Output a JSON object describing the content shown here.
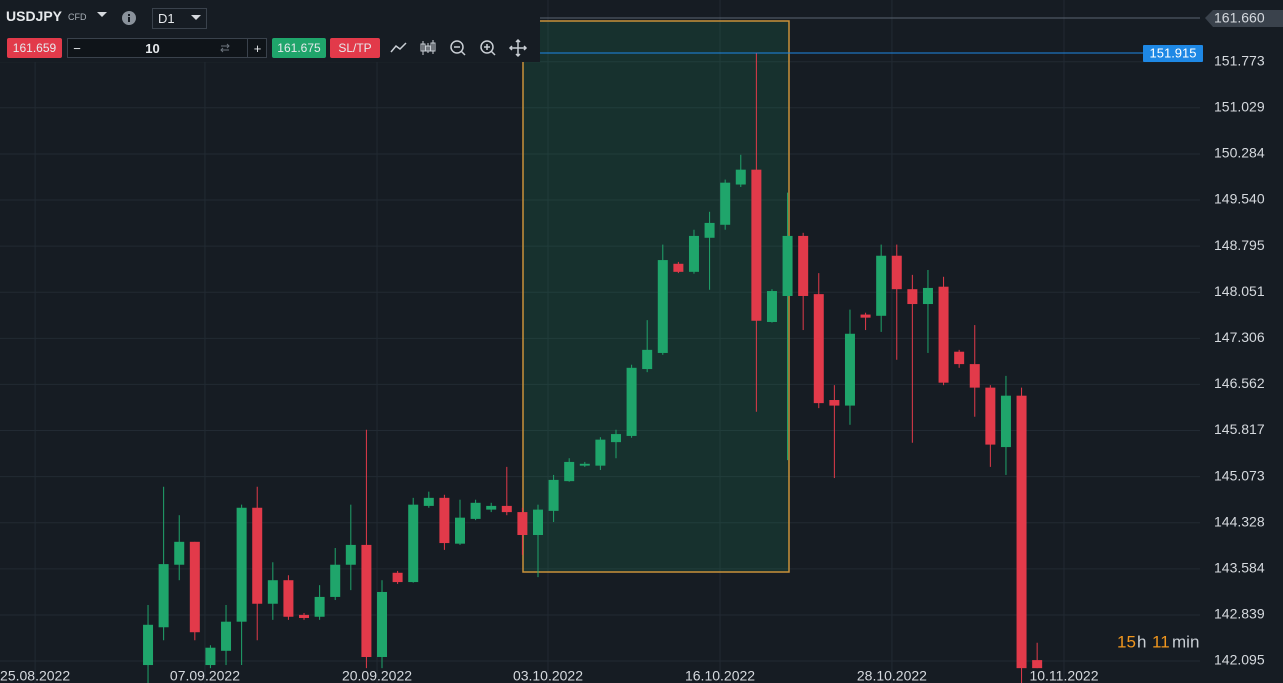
{
  "toolbar": {
    "symbol": "USDJPY",
    "symbol_type": "CFD",
    "timeframe": "D1",
    "sell_price": "161.659",
    "minus": "−",
    "quantity": "10",
    "plus": "+",
    "buy_price": "161.675",
    "sltp": "SL/TP"
  },
  "chart_data": {
    "type": "candlestick",
    "x": [
      0,
      1,
      2,
      3,
      4,
      5,
      6,
      7,
      8,
      9,
      10,
      11,
      12,
      13,
      14,
      15,
      16,
      17,
      18,
      19,
      20,
      21,
      22,
      23,
      24,
      25,
      26,
      27,
      28,
      29,
      30,
      31,
      32,
      33,
      34,
      35,
      36,
      37,
      38,
      39,
      40,
      41,
      42,
      43,
      44,
      45,
      46,
      47,
      48,
      49,
      50,
      51,
      52,
      53,
      54,
      55,
      56,
      57
    ],
    "open": [
      142.03,
      142.64,
      143.65,
      144.02,
      142.03,
      142.26,
      142.73,
      144.57,
      143.02,
      143.4,
      142.84,
      142.81,
      143.13,
      143.65,
      143.97,
      142.16,
      143.52,
      143.37,
      144.6,
      144.73,
      143.99,
      144.39,
      144.54,
      144.6,
      144.5,
      144.13,
      144.52,
      145.0,
      145.25,
      145.25,
      145.63,
      145.73,
      146.81,
      147.07,
      148.51,
      148.38,
      148.93,
      149.14,
      149.79,
      150.03,
      147.57,
      147.99,
      148.96,
      148.02,
      146.31,
      146.22,
      147.69,
      147.67,
      148.64,
      148.1,
      147.86,
      148.14,
      147.09,
      146.89,
      146.51,
      145.55,
      146.38,
      142.11
    ],
    "high": [
      143.0,
      144.91,
      144.45,
      144.02,
      142.35,
      143.0,
      144.62,
      144.91,
      143.69,
      143.48,
      142.87,
      143.32,
      143.92,
      144.62,
      145.83,
      143.4,
      143.55,
      144.73,
      144.83,
      144.78,
      144.7,
      144.7,
      144.65,
      145.23,
      144.57,
      144.62,
      145.1,
      145.37,
      145.31,
      145.71,
      145.83,
      146.88,
      147.6,
      148.82,
      148.54,
      149.06,
      149.35,
      149.87,
      150.27,
      151.92,
      148.1,
      149.66,
      149.01,
      148.36,
      146.55,
      147.77,
      147.72,
      148.82,
      148.82,
      148.33,
      148.41,
      148.3,
      147.12,
      147.52,
      146.55,
      146.7,
      146.51,
      142.39
    ],
    "low": [
      141.74,
      142.43,
      143.4,
      142.43,
      141.98,
      142.03,
      142.03,
      142.43,
      142.76,
      142.76,
      142.76,
      142.76,
      143.08,
      143.24,
      141.98,
      141.98,
      143.34,
      143.36,
      144.57,
      143.89,
      143.97,
      144.37,
      144.5,
      144.45,
      143.81,
      143.45,
      144.34,
      144.99,
      145.23,
      145.18,
      145.37,
      145.7,
      146.76,
      147.04,
      148.36,
      148.35,
      148.09,
      149.06,
      149.75,
      146.12,
      147.56,
      145.34,
      147.44,
      146.18,
      145.05,
      145.91,
      147.44,
      147.41,
      146.96,
      145.62,
      147.07,
      146.55,
      146.83,
      146.04,
      145.23,
      145.1,
      141.74,
      141.98
    ],
    "close": [
      142.68,
      143.66,
      144.02,
      142.56,
      142.31,
      142.73,
      144.57,
      143.02,
      143.4,
      142.81,
      142.79,
      143.13,
      143.65,
      143.97,
      142.16,
      143.21,
      143.37,
      144.62,
      144.73,
      144.0,
      144.41,
      144.65,
      144.6,
      144.5,
      144.13,
      144.54,
      145.02,
      145.31,
      145.28,
      145.67,
      145.76,
      146.83,
      147.12,
      148.57,
      148.38,
      148.96,
      149.17,
      149.82,
      150.03,
      147.59,
      148.07,
      148.96,
      147.99,
      146.26,
      146.22,
      147.38,
      147.64,
      148.64,
      148.1,
      147.86,
      148.12,
      146.59,
      146.89,
      146.51,
      145.59,
      146.38,
      141.98,
      141.98
    ],
    "up_color": "#1fa56b",
    "down_color": "#e23a4a",
    "xlim": [
      -9.49,
      67.44
    ],
    "xticks": [
      {
        "value": -7.24,
        "label": "25.08.2022"
      },
      {
        "value": 3.65,
        "label": "07.09.2022"
      },
      {
        "value": 14.68,
        "label": "20.09.2022"
      },
      {
        "value": 25.64,
        "label": "03.10.2022"
      },
      {
        "value": 36.67,
        "label": "16.10.2022"
      },
      {
        "value": 47.69,
        "label": "28.10.2022"
      },
      {
        "value": 58.72,
        "label": "10.11.2022"
      }
    ],
    "ylim": [
      141.74,
      152.77
    ],
    "yticks": [
      151.773,
      151.029,
      150.284,
      {
        "value": 149.54,
        "label": "149.540"
      },
      148.795,
      148.051,
      147.306,
      146.562,
      145.817,
      145.073,
      144.328,
      143.584,
      142.839,
      142.095
    ],
    "top_price_label": "161.660",
    "price_line": 151.915,
    "price_line_color": "#1e88e5",
    "grid": true,
    "timer": {
      "hours": "15",
      "hours_unit": "h",
      "minutes": "11",
      "minutes_unit": "min"
    }
  }
}
